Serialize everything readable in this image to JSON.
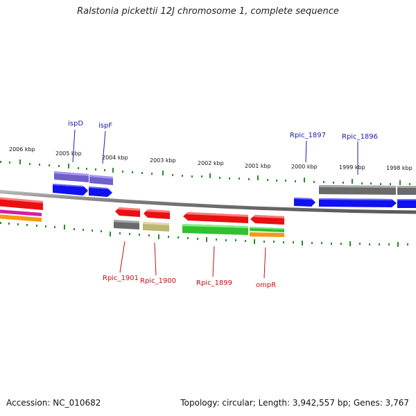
{
  "title": "Ralstonia pickettii 12J chromosome 1, complete sequence",
  "footer": {
    "accession": "Accession: NC_010682",
    "summary": "Topology: circular; Length: 3,942,557 bp; Genes: 3,767"
  },
  "scale": {
    "ticks": [
      {
        "label": "2006 kbp"
      },
      {
        "label": "2005 kbp"
      },
      {
        "label": "2004 kbp"
      },
      {
        "label": "2003 kbp"
      },
      {
        "label": "2002 kbp"
      },
      {
        "label": "2001 kbp"
      },
      {
        "label": "2000 kbp"
      },
      {
        "label": "1999 kbp"
      },
      {
        "label": "1998 kbp"
      }
    ]
  },
  "colors": {
    "red": "#e81010",
    "blue": "#1010f0",
    "violet": "#7060cc",
    "gray": "#707070",
    "khaki": "#bdb870",
    "green": "#30c030",
    "orange": "#f59a10",
    "magenta": "#d020a0",
    "tick_green": "#2a8a2a",
    "label_blue": "#1a1aa8",
    "label_red": "#c01010"
  },
  "gene_labels": {
    "top": [
      "ispD",
      "ispF",
      "Rpic_1897",
      "Rpic_1896"
    ],
    "bottom": [
      "Rpic_1901",
      "Rpic_1900",
      "Rpic_1899",
      "ompR"
    ]
  }
}
